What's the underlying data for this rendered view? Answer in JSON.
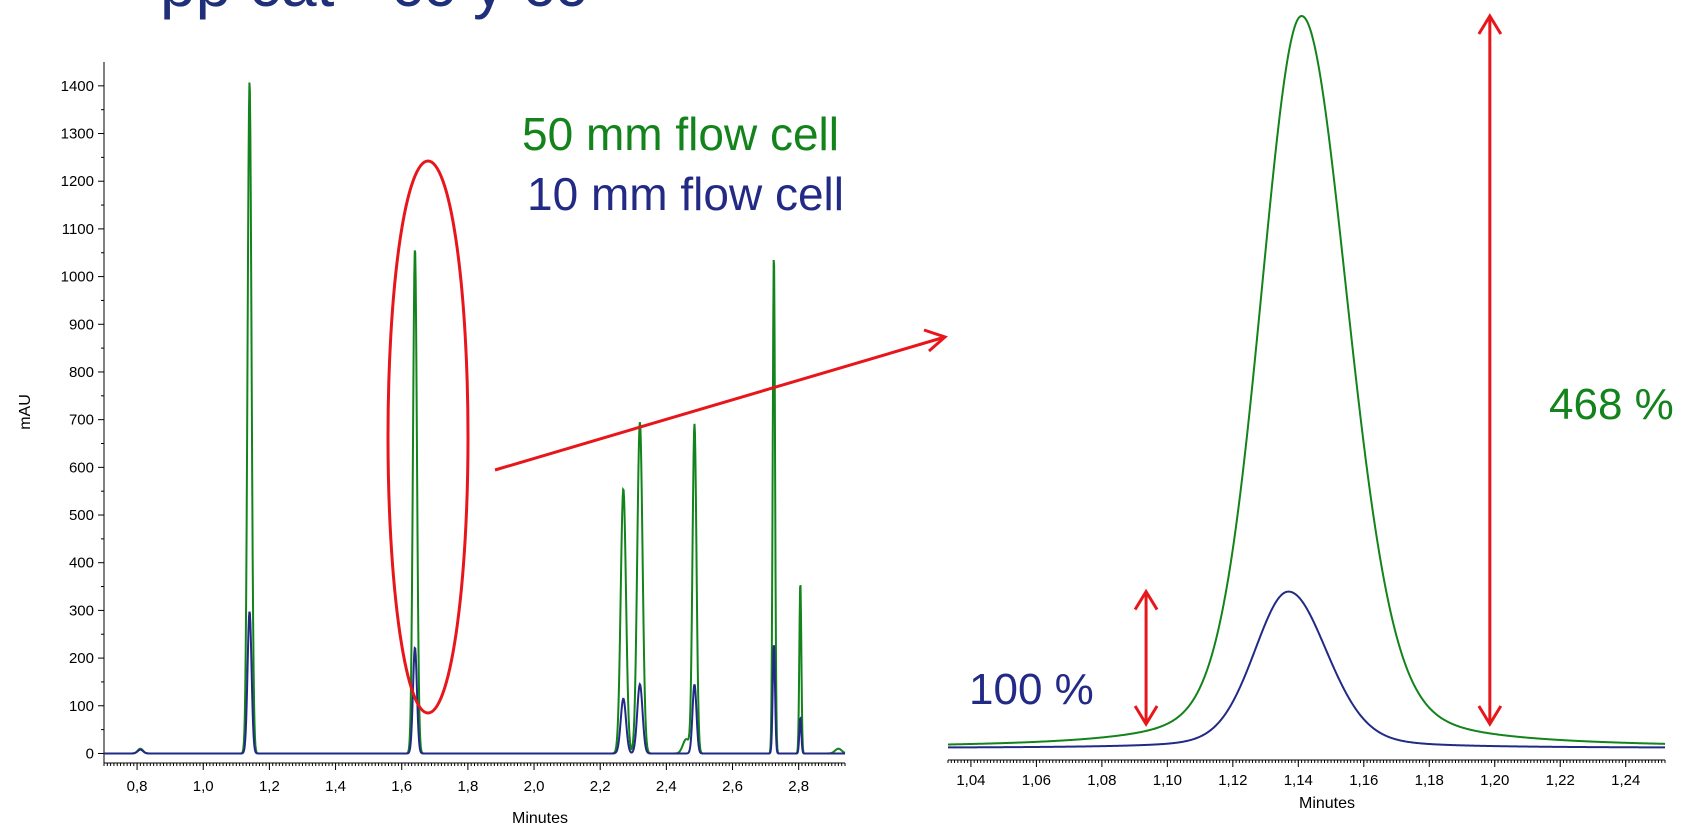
{
  "colors": {
    "green": "#13831b",
    "blue": "#222a86",
    "red": "#e8161b",
    "title": "#1f2f7a"
  },
  "title_fragment": "pp  cat    ·      cc   y  cc",
  "legend": {
    "line1": "50 mm flow cell",
    "line2": "10 mm flow cell"
  },
  "annotations": {
    "pct_blue": "100 %",
    "pct_green": "468 %"
  },
  "chart_data": [
    {
      "type": "line",
      "title": "",
      "xlabel": "Minutes",
      "ylabel": "mAU",
      "xlim": [
        0.7,
        2.94
      ],
      "ylim": [
        -20,
        1450
      ],
      "x_ticks": [
        0.8,
        1.0,
        1.2,
        1.4,
        1.6,
        1.8,
        2.0,
        2.2,
        2.4,
        2.6,
        2.8
      ],
      "x_tick_labels": [
        "0,8",
        "1,0",
        "1,2",
        "1,4",
        "1,6",
        "1,8",
        "2,0",
        "2,2",
        "2,4",
        "2,6",
        "2,8"
      ],
      "y_ticks": [
        0,
        100,
        200,
        300,
        400,
        500,
        600,
        700,
        800,
        900,
        1000,
        1100,
        1200,
        1300,
        1400
      ],
      "y_tick_labels": [
        "0",
        "100",
        "200",
        "300",
        "400",
        "500",
        "600",
        "700",
        "800",
        "900",
        "1000",
        "1100",
        "1200",
        "1300",
        "1400"
      ],
      "series": [
        {
          "name": "50 mm flow cell",
          "color": "green",
          "baseline": 0,
          "peaks": [
            {
              "x": 0.81,
              "height": 10,
              "width": 0.008
            },
            {
              "x": 1.14,
              "height": 1410,
              "width": 0.006
            },
            {
              "x": 1.64,
              "height": 1060,
              "width": 0.006
            },
            {
              "x": 2.27,
              "height": 555,
              "width": 0.008
            },
            {
              "x": 2.32,
              "height": 695,
              "width": 0.008
            },
            {
              "x": 2.46,
              "height": 30,
              "width": 0.01
            },
            {
              "x": 2.485,
              "height": 690,
              "width": 0.006
            },
            {
              "x": 2.725,
              "height": 1050,
              "width": 0.0035
            },
            {
              "x": 2.805,
              "height": 360,
              "width": 0.003
            },
            {
              "x": 2.92,
              "height": 10,
              "width": 0.01
            }
          ]
        },
        {
          "name": "10 mm flow cell",
          "color": "blue",
          "baseline": 0,
          "peaks": [
            {
              "x": 0.81,
              "height": 8,
              "width": 0.008
            },
            {
              "x": 1.14,
              "height": 298,
              "width": 0.006
            },
            {
              "x": 1.64,
              "height": 222,
              "width": 0.006
            },
            {
              "x": 2.27,
              "height": 115,
              "width": 0.008
            },
            {
              "x": 2.32,
              "height": 145,
              "width": 0.008
            },
            {
              "x": 2.485,
              "height": 145,
              "width": 0.006
            },
            {
              "x": 2.725,
              "height": 230,
              "width": 0.0035
            },
            {
              "x": 2.805,
              "height": 75,
              "width": 0.003
            }
          ]
        }
      ]
    },
    {
      "type": "line",
      "title": "",
      "xlabel": "Minutes",
      "ylabel": "",
      "xlim": [
        1.033,
        1.252
      ],
      "y_ticks": [],
      "x_ticks": [
        1.04,
        1.06,
        1.08,
        1.1,
        1.12,
        1.14,
        1.16,
        1.18,
        1.2,
        1.22,
        1.24
      ],
      "x_tick_labels": [
        "1,04",
        "1,06",
        "1,08",
        "1,10",
        "1,12",
        "1,14",
        "1,16",
        "1,18",
        "1,20",
        "1,22",
        "1,24"
      ],
      "series": [
        {
          "name": "50 mm flow cell",
          "color": "green",
          "peak": {
            "x": 1.141,
            "height": 468,
            "width_left": 0.0125,
            "width_right": 0.014,
            "baseline": 0,
            "tail_drop": 2
          }
        },
        {
          "name": "10 mm flow cell",
          "color": "blue",
          "peak": {
            "x": 1.137,
            "height": 100,
            "width_left": 0.0105,
            "width_right": 0.0118,
            "baseline": 0,
            "tail_drop": 0
          }
        }
      ]
    }
  ]
}
